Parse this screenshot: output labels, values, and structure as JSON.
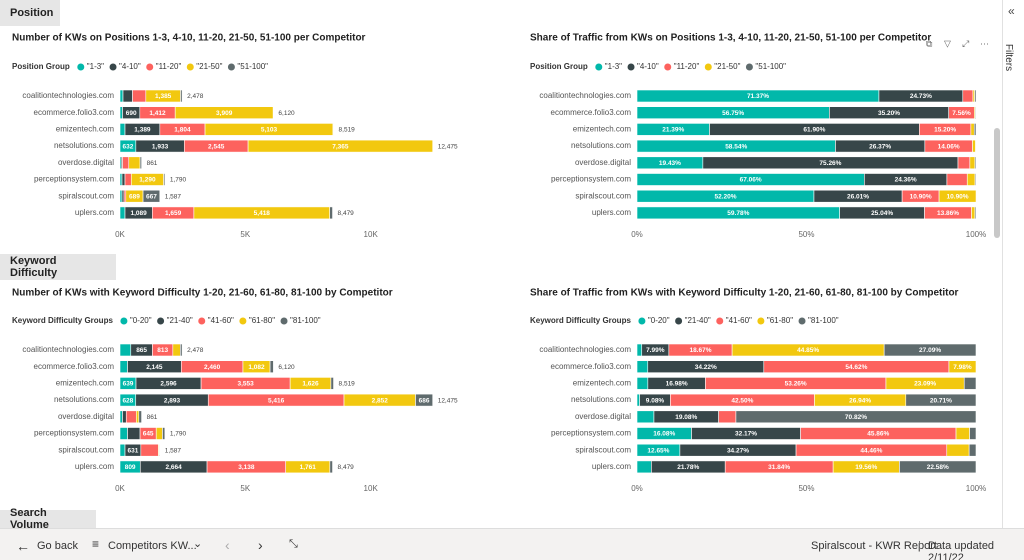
{
  "sections": [
    "Position",
    "Keyword Difficulty",
    "Search Volume"
  ],
  "chart_data": [
    {
      "type": "bar",
      "orientation": "horizontal",
      "stacked": true,
      "title": "Number of KWs on Positions 1-3, 4-10, 11-20, 21-50, 51-100 per Competitor",
      "legend_title": "Position Group",
      "categories": [
        "coalitiontechnologies.com",
        "ecommerce.folio3.com",
        "emizentech.com",
        "netsolutions.com",
        "overdose.digital",
        "perceptionsystem.com",
        "spiralscout.com",
        "uplers.com"
      ],
      "series": [
        {
          "name": "\"1-3\"",
          "color": "#01B8AA",
          "values": [
            120,
            100,
            200,
            632,
            50,
            80,
            80,
            200
          ],
          "value_labels": [
            null,
            null,
            null,
            "632",
            null,
            null,
            null,
            null
          ]
        },
        {
          "name": "\"4-10\"",
          "color": "#374649",
          "values": [
            380,
            690,
            1389,
            1933,
            50,
            120,
            80,
            1089
          ],
          "value_labels": [
            null,
            "690",
            "1,389",
            "1,933",
            null,
            null,
            null,
            "1,089"
          ]
        },
        {
          "name": "\"11-20\"",
          "color": "#FD625E",
          "values": [
            530,
            1412,
            1804,
            2545,
            250,
            250,
            71,
            1659
          ],
          "value_labels": [
            null,
            "1,412",
            "1,804",
            "2,545",
            null,
            null,
            null,
            "1,659"
          ]
        },
        {
          "name": "\"21-50\"",
          "color": "#F2C80F",
          "values": [
            1385,
            3909,
            5103,
            7365,
            450,
            1290,
            689,
            5418
          ],
          "value_labels": [
            "1,385",
            "3,909",
            "5,103",
            "7,365",
            null,
            "1,290",
            "689",
            "5,418"
          ]
        },
        {
          "name": "\"51-100\"",
          "color": "#5F6B6D",
          "values": [
            63,
            9,
            23,
            0,
            61,
            50,
            667,
            113
          ],
          "value_labels": [
            null,
            null,
            null,
            null,
            null,
            null,
            "667",
            null
          ]
        }
      ],
      "totals": {
        "values": [
          2478,
          6120,
          8519,
          12475,
          861,
          1790,
          1587,
          8479
        ],
        "value_labels": [
          "2,478",
          "6,120",
          "8,519",
          "12,475",
          "861",
          "1,790",
          "1,587",
          "8,479"
        ]
      },
      "xlim": [
        0,
        15000
      ],
      "xticks": [
        {
          "value": 0,
          "label": "0K"
        },
        {
          "value": 5000,
          "label": "5K"
        },
        {
          "value": 10000,
          "label": "10K"
        }
      ]
    },
    {
      "type": "bar",
      "orientation": "horizontal",
      "stacked": true,
      "title": "Share of Traffic from KWs on Positions 1-3, 4-10, 11-20, 21-50, 51-100 per Competitor",
      "legend_title": "Position Group",
      "categories": [
        "coalitiontechnologies.com",
        "ecommerce.folio3.com",
        "emizentech.com",
        "netsolutions.com",
        "overdose.digital",
        "perceptionsystem.com",
        "spiralscout.com",
        "uplers.com"
      ],
      "series": [
        {
          "name": "\"1-3\"",
          "color": "#01B8AA",
          "values": [
            71.37,
            56.75,
            21.39,
            58.54,
            19.43,
            67.06,
            52.2,
            59.78
          ],
          "value_labels": [
            "71.37%",
            "56.75%",
            "21.39%",
            "58.54%",
            "19.43%",
            "67.06%",
            "52.20%",
            "59.78%"
          ]
        },
        {
          "name": "\"4-10\"",
          "color": "#374649",
          "values": [
            24.73,
            35.2,
            61.9,
            26.37,
            75.26,
            24.36,
            26.01,
            25.04
          ],
          "value_labels": [
            "24.73%",
            "35.20%",
            "61.90%",
            "26.37%",
            "75.26%",
            "24.36%",
            "26.01%",
            "25.04%"
          ]
        },
        {
          "name": "\"11-20\"",
          "color": "#FD625E",
          "values": [
            3.0,
            7.56,
            15.2,
            14.06,
            3.5,
            6.0,
            10.9,
            13.86
          ],
          "value_labels": [
            null,
            "7.56%",
            "15.20%",
            "14.06%",
            null,
            null,
            "10.90%",
            "13.86%"
          ]
        },
        {
          "name": "\"21-50\"",
          "color": "#F2C80F",
          "values": [
            0.5,
            0.3,
            1.0,
            0.9,
            1.5,
            2.3,
            10.9,
            1.0
          ],
          "value_labels": [
            null,
            null,
            null,
            null,
            null,
            null,
            "10.90%",
            null
          ]
        },
        {
          "name": "\"51-100\"",
          "color": "#5F6B6D",
          "values": [
            0.4,
            0.19,
            0.51,
            0.13,
            0.31,
            0.28,
            0,
            0.32
          ],
          "value_labels": [
            null,
            null,
            null,
            null,
            null,
            null,
            null,
            null
          ]
        }
      ],
      "xlim": [
        0,
        100
      ],
      "xticks": [
        {
          "value": 0,
          "label": "0%"
        },
        {
          "value": 50,
          "label": "50%"
        },
        {
          "value": 100,
          "label": "100%"
        }
      ]
    },
    {
      "type": "bar",
      "orientation": "horizontal",
      "stacked": true,
      "title": "Number of KWs with Keyword Difficulty 1-20, 21-60, 61-80, 81-100 by Competitor",
      "legend_title": "Keyword Difficulty Groups",
      "categories": [
        "coalitiontechnologies.com",
        "ecommerce.folio3.com",
        "emizentech.com",
        "netsolutions.com",
        "overdose.digital",
        "perceptionsystem.com",
        "spiralscout.com",
        "uplers.com"
      ],
      "series": [
        {
          "name": "\"0-20\"",
          "color": "#01B8AA",
          "values": [
            430,
            300,
            639,
            628,
            100,
            300,
            200,
            809
          ],
          "value_labels": [
            null,
            null,
            "639",
            "628",
            null,
            null,
            null,
            "809"
          ]
        },
        {
          "name": "\"21-40\"",
          "color": "#374649",
          "values": [
            865,
            2145,
            2596,
            2893,
            150,
            500,
            631,
            2664
          ],
          "value_labels": [
            "865",
            "2,145",
            "2,596",
            "2,893",
            null,
            null,
            "631",
            "2,664"
          ]
        },
        {
          "name": "\"41-60\"",
          "color": "#FD625E",
          "values": [
            813,
            2460,
            3553,
            5416,
            400,
            645,
            700,
            3138
          ],
          "value_labels": [
            "813",
            "2,460",
            "3,553",
            "5,416",
            null,
            "645",
            null,
            "3,138"
          ]
        },
        {
          "name": "\"61-80\"",
          "color": "#F2C80F",
          "values": [
            300,
            1082,
            1626,
            2852,
            100,
            250,
            30,
            1761
          ],
          "value_labels": [
            null,
            "1,082",
            "1,626",
            "2,852",
            null,
            null,
            null,
            "1,761"
          ]
        },
        {
          "name": "\"81-100\"",
          "color": "#5F6B6D",
          "values": [
            70,
            133,
            105,
            686,
            111,
            95,
            26,
            107
          ],
          "value_labels": [
            null,
            null,
            null,
            "686",
            null,
            null,
            null,
            null
          ]
        }
      ],
      "totals": {
        "values": [
          2478,
          6120,
          8519,
          12475,
          861,
          1790,
          1587,
          8479
        ],
        "value_labels": [
          "2,478",
          "6,120",
          "8,519",
          "12,475",
          "861",
          "1,790",
          "1,587",
          "8,479"
        ]
      },
      "xlim": [
        0,
        15000
      ],
      "xticks": [
        {
          "value": 0,
          "label": "0K"
        },
        {
          "value": 5000,
          "label": "5K"
        },
        {
          "value": 10000,
          "label": "10K"
        }
      ]
    },
    {
      "type": "bar",
      "orientation": "horizontal",
      "stacked": true,
      "title": "Share of Traffic from KWs with Keyword Difficulty 1-20, 21-60, 61-80, 81-100 by Competitor",
      "legend_title": "Keyword Difficulty Groups",
      "categories": [
        "coalitiontechnologies.com",
        "ecommerce.folio3.com",
        "emizentech.com",
        "netsolutions.com",
        "overdose.digital",
        "perceptionsystem.com",
        "spiralscout.com",
        "uplers.com"
      ],
      "series": [
        {
          "name": "\"0-20\"",
          "color": "#01B8AA",
          "values": [
            1.4,
            3.18,
            3.2,
            0.77,
            5.0,
            16.08,
            12.65,
            4.24
          ],
          "value_labels": [
            null,
            null,
            null,
            null,
            null,
            "16.08%",
            "12.65%",
            null
          ]
        },
        {
          "name": "\"21-40\"",
          "color": "#374649",
          "values": [
            7.99,
            34.22,
            16.98,
            9.08,
            19.08,
            32.17,
            34.27,
            21.78
          ],
          "value_labels": [
            "7.99%",
            "34.22%",
            "16.98%",
            "9.08%",
            "19.08%",
            "32.17%",
            "34.27%",
            "21.78%"
          ]
        },
        {
          "name": "\"41-60\"",
          "color": "#FD625E",
          "values": [
            18.67,
            54.62,
            53.26,
            42.5,
            5.1,
            45.86,
            44.46,
            31.84
          ],
          "value_labels": [
            "18.67%",
            "54.62%",
            "53.26%",
            "42.50%",
            null,
            "45.86%",
            "44.46%",
            "31.84%"
          ]
        },
        {
          "name": "\"61-80\"",
          "color": "#F2C80F",
          "values": [
            44.85,
            7.98,
            23.09,
            26.94,
            0,
            4.0,
            6.6,
            19.56
          ],
          "value_labels": [
            "44.85%",
            "7.98%",
            "23.09%",
            "26.94%",
            null,
            null,
            null,
            "19.56%"
          ]
        },
        {
          "name": "\"81-100\"",
          "color": "#5F6B6D",
          "values": [
            27.09,
            0,
            3.47,
            20.71,
            70.82,
            1.89,
            2.02,
            22.58
          ],
          "value_labels": [
            "27.09%",
            null,
            null,
            "20.71%",
            "70.82%",
            null,
            null,
            "22.58%"
          ]
        }
      ],
      "xlim": [
        0,
        100
      ],
      "xticks": [
        {
          "value": 0,
          "label": "0%"
        },
        {
          "value": 50,
          "label": "50%"
        },
        {
          "value": 100,
          "label": "100%"
        }
      ]
    }
  ],
  "footer": {
    "back": "Go back",
    "page": "Competitors KW...",
    "report": "Spiralscout - KWR Report",
    "updated": "Data updated 2/11/22"
  },
  "filters_pane": "Filters"
}
